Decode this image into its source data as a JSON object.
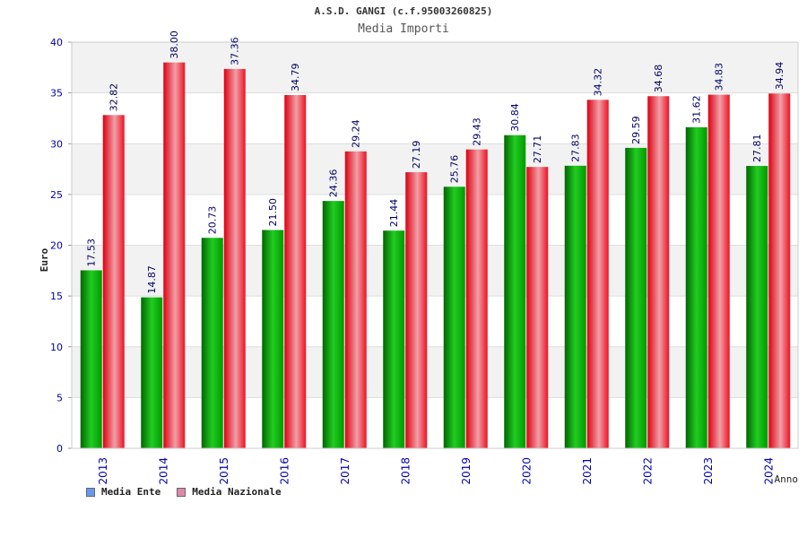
{
  "header": {
    "title": "A.S.D. GANGI (c.f.95003260825)",
    "subtitle": "Media Importi"
  },
  "chart_data": {
    "type": "bar",
    "categories": [
      "2013",
      "2014",
      "2015",
      "2016",
      "2017",
      "2018",
      "2019",
      "2020",
      "2021",
      "2022",
      "2023",
      "2024"
    ],
    "series": [
      {
        "name": "Media Ente",
        "color": "#00bb00",
        "legend_color": "#6699ee",
        "values": [
          17.53,
          14.87,
          20.73,
          21.5,
          24.36,
          21.44,
          25.76,
          30.84,
          27.83,
          29.59,
          31.62,
          27.81
        ],
        "labels": [
          "17.53",
          "14.87",
          "20.73",
          "21.50",
          "24.36",
          "21.44",
          "25.76",
          "30.84",
          "27.83",
          "29.59",
          "31.62",
          "27.81"
        ]
      },
      {
        "name": "Media Nazionale",
        "color": "#ee1122",
        "legend_color": "#dd88aa",
        "values": [
          32.82,
          38.0,
          37.36,
          34.79,
          29.24,
          27.19,
          29.43,
          27.71,
          34.32,
          34.68,
          34.83,
          34.94
        ],
        "labels": [
          "32.82",
          "38.00",
          "37.36",
          "34.79",
          "29.24",
          "27.19",
          "29.43",
          "27.71",
          "34.32",
          "34.68",
          "34.83",
          "34.94"
        ]
      }
    ],
    "yticks": [
      "0",
      "5",
      "10",
      "15",
      "20",
      "25",
      "30",
      "35",
      "40"
    ],
    "ylim": [
      0,
      40
    ],
    "xlabel": "Anno",
    "ylabel": "Euro",
    "grid": true,
    "legend_position": "bottom-left",
    "axis_label_color": "#0000aa",
    "value_label_color": "#000066"
  }
}
